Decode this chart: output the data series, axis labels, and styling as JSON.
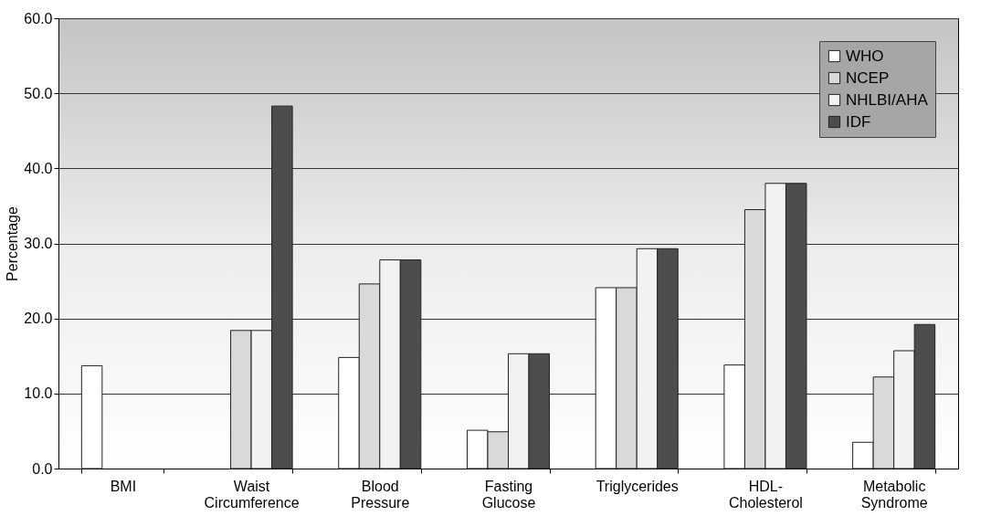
{
  "chart_data": {
    "type": "bar",
    "ylabel": "Percentage",
    "categories": [
      "BMI",
      "Waist Circumference",
      "Blood Pressure",
      "Fasting Glucose",
      "Triglycerides",
      "HDL-Cholesterol",
      "Metabolic Syndrome"
    ],
    "series": [
      {
        "name": "WHO",
        "color": "#ffffff",
        "values": [
          13.7,
          null,
          14.8,
          5.1,
          24.1,
          13.8,
          3.5
        ]
      },
      {
        "name": "NCEP",
        "color": "#d9d9d9",
        "values": [
          null,
          18.4,
          24.6,
          4.9,
          24.1,
          34.5,
          12.2
        ]
      },
      {
        "name": "NHLBI/AHA",
        "color": "#f2f2f2",
        "values": [
          null,
          18.4,
          27.8,
          15.3,
          29.3,
          38.0,
          15.7
        ]
      },
      {
        "name": "IDF",
        "color": "#4d4d4d",
        "values": [
          null,
          48.3,
          27.8,
          15.3,
          29.3,
          38.0,
          19.2
        ]
      }
    ],
    "ylim": [
      0,
      60
    ],
    "yticks": [
      {
        "value": 0,
        "label": "0.0"
      },
      {
        "value": 10,
        "label": "10.0"
      },
      {
        "value": 20,
        "label": "20.0"
      },
      {
        "value": 30,
        "label": "30.0"
      },
      {
        "value": 40,
        "label": "40.0"
      },
      {
        "value": 50,
        "label": "50.0"
      },
      {
        "value": 60,
        "label": "60.0"
      }
    ],
    "grid": "y",
    "legend": "top right"
  }
}
